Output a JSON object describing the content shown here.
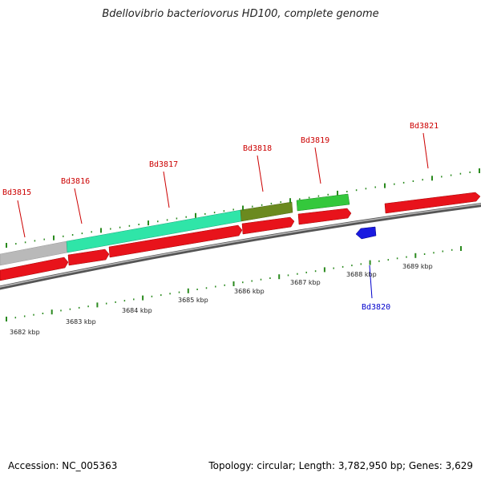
{
  "title": "Bdellovibrio bacteriovorus HD100, complete genome",
  "footer": {
    "accession": "Accession: NC_005363",
    "summary": "Topology: circular; Length: 3,782,950 bp; Genes: 3,629"
  },
  "colors": {
    "gene_red": "#e8131b",
    "gene_blue": "#1a1ae0",
    "feature_teal": "#2fe5a8",
    "feature_olive": "#6b8a1f",
    "feature_green": "#34c83c",
    "feature_gray": "#b9b9b9",
    "label_red": "#cc0000",
    "label_blue": "#0000cc",
    "tick_green": "#2a8a1e"
  },
  "scale": {
    "unit": "kbp",
    "labels": [
      "3682 kbp",
      "3683 kbp",
      "3684 kbp",
      "3685 kbp",
      "3686 kbp",
      "3687 kbp",
      "3688 kbp",
      "3689 kbp"
    ]
  },
  "genes": [
    {
      "label": "Bd3815",
      "strand": "+",
      "color": "red"
    },
    {
      "label": "Bd3816",
      "strand": "+",
      "color": "red"
    },
    {
      "label": "Bd3817",
      "strand": "+",
      "color": "red"
    },
    {
      "label": "Bd3818",
      "strand": "+",
      "color": "red"
    },
    {
      "label": "Bd3819",
      "strand": "+",
      "color": "red"
    },
    {
      "label": "Bd3820",
      "strand": "-",
      "color": "blue"
    },
    {
      "label": "Bd3821",
      "strand": "+",
      "color": "red"
    }
  ]
}
